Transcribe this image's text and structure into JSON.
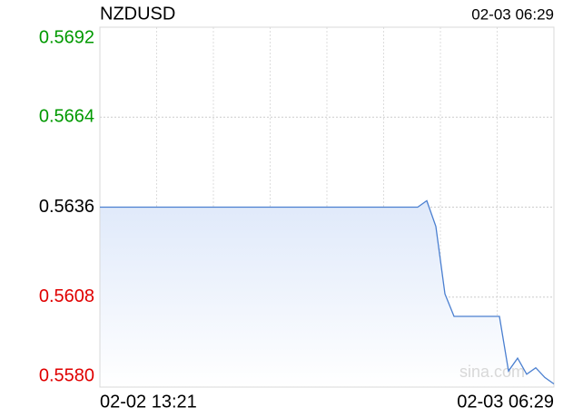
{
  "chart_data": {
    "type": "line",
    "title": "NZDUSD",
    "timestamp": "02-03 06:29",
    "watermark": "sina.com",
    "categories": [
      "02-02 13:21",
      null,
      null,
      null,
      null,
      null,
      null,
      null,
      null,
      null,
      null,
      null,
      null,
      null,
      null,
      null,
      null,
      null,
      null,
      null,
      null,
      null,
      null,
      null,
      null,
      null,
      null,
      null,
      null,
      null,
      null,
      null,
      null,
      null,
      null,
      null,
      null,
      null,
      null,
      null,
      null,
      null,
      null,
      null,
      null,
      null,
      null,
      null,
      null,
      null,
      "02-03 06:29"
    ],
    "values": [
      0.5636,
      0.5636,
      0.5636,
      0.5636,
      0.5636,
      0.5636,
      0.5636,
      0.5636,
      0.5636,
      0.5636,
      0.5636,
      0.5636,
      0.5636,
      0.5636,
      0.5636,
      0.5636,
      0.5636,
      0.5636,
      0.5636,
      0.5636,
      0.5636,
      0.5636,
      0.5636,
      0.5636,
      0.5636,
      0.5636,
      0.5636,
      0.5636,
      0.5636,
      0.5636,
      0.5636,
      0.5636,
      0.5636,
      0.5636,
      0.5636,
      0.5636,
      0.5638,
      0.563,
      0.5609,
      0.5602,
      0.5602,
      0.5602,
      0.5602,
      0.5602,
      0.5602,
      0.5585,
      0.5589,
      0.5584,
      0.5586,
      0.5583,
      0.5581
    ],
    "color": "#4a7fd0",
    "ylim": [
      0.558,
      0.5692
    ],
    "yticks": [
      {
        "value": 0.558,
        "label": "0.5580"
      },
      {
        "value": 0.5608,
        "label": "0.5608"
      },
      {
        "value": 0.5636,
        "label": "0.5636"
      },
      {
        "value": 0.5664,
        "label": "0.5664"
      },
      {
        "value": 0.5692,
        "label": "0.5692"
      }
    ],
    "ytick_colors": [
      "#e00000",
      "#e00000",
      "#000000",
      "#009900",
      "#009900"
    ],
    "grid": true
  }
}
